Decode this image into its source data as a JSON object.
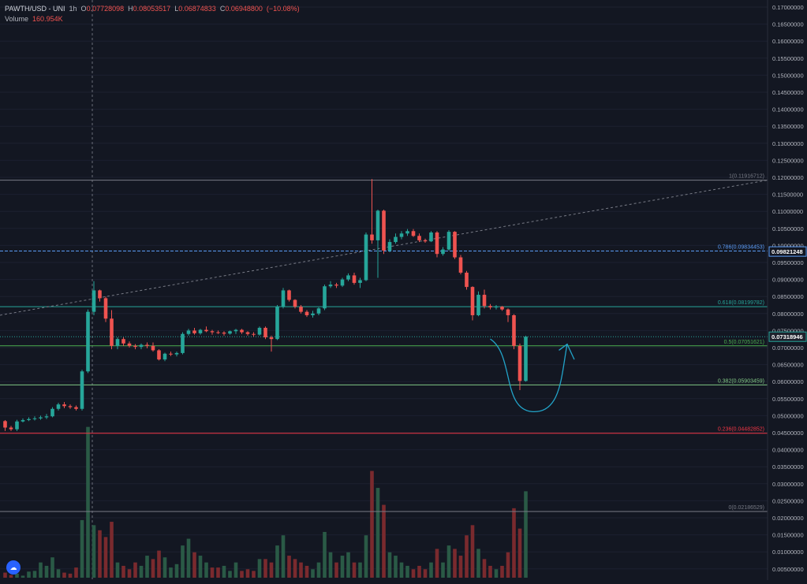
{
  "header": {
    "symbol": "PAWTH/USD - UNI",
    "interval": "1h",
    "o_label": "O",
    "o_value": "0.07728098",
    "h_label": "H",
    "h_value": "0.08053517",
    "l_label": "L",
    "l_value": "0.06874833",
    "c_label": "C",
    "c_value": "0.06948800",
    "change": "(−10.08%)",
    "volume_label": "Volume",
    "volume_value": "160.954K"
  },
  "colors": {
    "background": "#131722",
    "up": "#26a69a",
    "down": "#ef5350",
    "vol_up": "#2a5a46",
    "vol_down": "#7a2a2e",
    "fib_1": "#787b86",
    "fib_786": "#5b9cf6",
    "fib_618": "#26a69a",
    "fib_5": "#4caf50",
    "fib_382": "#81c784",
    "fib_236": "#f23645",
    "fib_0": "#787b86",
    "price_tag": "#131722",
    "drawing": "#22a3c8"
  },
  "chart_data": {
    "type": "candlestick",
    "ylim": [
      0.0,
      0.172
    ],
    "y_ticks": [
      "0.17000000",
      "0.16500000",
      "0.16000000",
      "0.15500000",
      "0.15000000",
      "0.14500000",
      "0.14000000",
      "0.13500000",
      "0.13000000",
      "0.12500000",
      "0.12000000",
      "0.11500000",
      "0.11000000",
      "0.10500000",
      "0.10000000",
      "0.09500000",
      "0.09000000",
      "0.08500000",
      "0.08000000",
      "0.07500000",
      "0.07000000",
      "0.06500000",
      "0.06000000",
      "0.05500000",
      "0.05000000",
      "0.04500000",
      "0.04000000",
      "0.03500000",
      "0.03000000",
      "0.02500000",
      "0.02000000",
      "0.01500000",
      "0.01000000",
      "0.00500000"
    ],
    "fib_levels": [
      {
        "label": "1(0.11916712)",
        "value": 0.11916712,
        "color_key": "fib_1"
      },
      {
        "label": "0.786(0.09834453)",
        "value": 0.09834453,
        "color_key": "fib_786"
      },
      {
        "label": "0.618(0.08199782)",
        "value": 0.08199782,
        "color_key": "fib_618"
      },
      {
        "label": "0.5(0.07051621)",
        "value": 0.07051621,
        "color_key": "fib_5"
      },
      {
        "label": "0.382(0.05903459)",
        "value": 0.05903459,
        "color_key": "fib_382"
      },
      {
        "label": "0.236(0.04482852)",
        "value": 0.04482852,
        "color_key": "fib_236"
      },
      {
        "label": "0(0.02186529)",
        "value": 0.02186529,
        "color_key": "fib_0"
      }
    ],
    "price_tags": [
      {
        "label": "0.09821248",
        "value": 0.09821248
      },
      {
        "label": "0.07318946",
        "value": 0.07318946
      }
    ],
    "candles": [
      [
        0.0484,
        0.0487,
        0.0455,
        0.0465
      ],
      [
        0.0465,
        0.047,
        0.0455,
        0.046
      ],
      [
        0.046,
        0.0488,
        0.0455,
        0.0483
      ],
      [
        0.0483,
        0.0492,
        0.048,
        0.0487
      ],
      [
        0.0487,
        0.0495,
        0.0484,
        0.049
      ],
      [
        0.049,
        0.0498,
        0.0486,
        0.0492
      ],
      [
        0.0492,
        0.05,
        0.0488,
        0.0495
      ],
      [
        0.0495,
        0.0505,
        0.049,
        0.0498
      ],
      [
        0.0498,
        0.0525,
        0.0495,
        0.052
      ],
      [
        0.052,
        0.0538,
        0.0515,
        0.0533
      ],
      [
        0.0533,
        0.054,
        0.0522,
        0.0528
      ],
      [
        0.0528,
        0.0533,
        0.052,
        0.0525
      ],
      [
        0.0525,
        0.053,
        0.0515,
        0.052
      ],
      [
        0.052,
        0.0635,
        0.0515,
        0.063
      ],
      [
        0.063,
        0.0812,
        0.0625,
        0.0805
      ],
      [
        0.0805,
        0.0895,
        0.0795,
        0.0868
      ],
      [
        0.0868,
        0.087,
        0.0835,
        0.0845
      ],
      [
        0.0845,
        0.085,
        0.0775,
        0.0785
      ],
      [
        0.0785,
        0.081,
        0.0695,
        0.0705
      ],
      [
        0.0705,
        0.073,
        0.0695,
        0.0725
      ],
      [
        0.0725,
        0.073,
        0.0705,
        0.0712
      ],
      [
        0.0712,
        0.0718,
        0.07,
        0.0705
      ],
      [
        0.0705,
        0.071,
        0.0695,
        0.0702
      ],
      [
        0.0702,
        0.0712,
        0.0695,
        0.0708
      ],
      [
        0.0708,
        0.0715,
        0.0698,
        0.0705
      ],
      [
        0.0705,
        0.0715,
        0.0688,
        0.0692
      ],
      [
        0.0692,
        0.0695,
        0.0662,
        0.0665
      ],
      [
        0.0665,
        0.0685,
        0.066,
        0.0682
      ],
      [
        0.0682,
        0.0688,
        0.0675,
        0.068
      ],
      [
        0.068,
        0.0688,
        0.0674,
        0.0684
      ],
      [
        0.0684,
        0.0745,
        0.068,
        0.074
      ],
      [
        0.074,
        0.0755,
        0.0735,
        0.075
      ],
      [
        0.075,
        0.0758,
        0.0738,
        0.0742
      ],
      [
        0.0742,
        0.0755,
        0.0738,
        0.0752
      ],
      [
        0.0752,
        0.0762,
        0.0745,
        0.0748
      ],
      [
        0.0748,
        0.0752,
        0.0738,
        0.0745
      ],
      [
        0.0745,
        0.075,
        0.074,
        0.0744
      ],
      [
        0.0744,
        0.0748,
        0.0735,
        0.0741
      ],
      [
        0.0741,
        0.075,
        0.0738,
        0.0748
      ],
      [
        0.0748,
        0.0755,
        0.074,
        0.0752
      ],
      [
        0.0752,
        0.0755,
        0.074,
        0.0745
      ],
      [
        0.0745,
        0.0748,
        0.0735,
        0.074
      ],
      [
        0.074,
        0.0745,
        0.0732,
        0.0738
      ],
      [
        0.0738,
        0.0762,
        0.0735,
        0.0758
      ],
      [
        0.0758,
        0.0762,
        0.0725,
        0.073
      ],
      [
        0.073,
        0.0735,
        0.0688,
        0.0725
      ],
      [
        0.0725,
        0.0825,
        0.0722,
        0.082
      ],
      [
        0.082,
        0.0875,
        0.0815,
        0.0868
      ],
      [
        0.0868,
        0.087,
        0.0835,
        0.084
      ],
      [
        0.084,
        0.0842,
        0.0815,
        0.082
      ],
      [
        0.082,
        0.0825,
        0.08,
        0.0805
      ],
      [
        0.0805,
        0.081,
        0.079,
        0.0795
      ],
      [
        0.0795,
        0.0808,
        0.0788,
        0.08
      ],
      [
        0.08,
        0.0818,
        0.0795,
        0.0815
      ],
      [
        0.0815,
        0.0885,
        0.081,
        0.088
      ],
      [
        0.088,
        0.0895,
        0.0875,
        0.0885
      ],
      [
        0.0885,
        0.089,
        0.0875,
        0.0882
      ],
      [
        0.0882,
        0.0905,
        0.0878,
        0.09
      ],
      [
        0.09,
        0.0918,
        0.0895,
        0.0912
      ],
      [
        0.0912,
        0.092,
        0.0885,
        0.089
      ],
      [
        0.089,
        0.0905,
        0.0875,
        0.0898
      ],
      [
        0.0898,
        0.1038,
        0.0895,
        0.1032
      ],
      [
        0.1032,
        0.1195,
        0.1005,
        0.1015
      ],
      [
        0.1015,
        0.1105,
        0.0905,
        0.1102
      ],
      [
        0.1102,
        0.1105,
        0.0975,
        0.0985
      ],
      [
        0.0985,
        0.1018,
        0.098,
        0.101
      ],
      [
        0.101,
        0.1035,
        0.1005,
        0.1025
      ],
      [
        0.1025,
        0.1042,
        0.1018,
        0.1035
      ],
      [
        0.1035,
        0.1048,
        0.1028,
        0.1042
      ],
      [
        0.1042,
        0.1048,
        0.1025,
        0.1028
      ],
      [
        0.1028,
        0.1035,
        0.101,
        0.1015
      ],
      [
        0.1015,
        0.102,
        0.1008,
        0.1012
      ],
      [
        0.1012,
        0.1042,
        0.101,
        0.1038
      ],
      [
        0.1038,
        0.1042,
        0.0965,
        0.0975
      ],
      [
        0.0975,
        0.0995,
        0.097,
        0.0988
      ],
      [
        0.0988,
        0.1045,
        0.0985,
        0.104
      ],
      [
        0.104,
        0.1042,
        0.096,
        0.0965
      ],
      [
        0.0965,
        0.0972,
        0.0915,
        0.092
      ],
      [
        0.092,
        0.0925,
        0.087,
        0.0878
      ],
      [
        0.0878,
        0.088,
        0.078,
        0.0795
      ],
      [
        0.0795,
        0.0865,
        0.0792,
        0.0855
      ],
      [
        0.0855,
        0.087,
        0.0815,
        0.0822
      ],
      [
        0.0822,
        0.0828,
        0.0812,
        0.0818
      ],
      [
        0.0818,
        0.0825,
        0.0812,
        0.082
      ],
      [
        0.082,
        0.0822,
        0.0808,
        0.0812
      ],
      [
        0.0812,
        0.0815,
        0.0775,
        0.0795
      ],
      [
        0.0795,
        0.0798,
        0.0695,
        0.0705
      ],
      [
        0.0705,
        0.0712,
        0.0575,
        0.0602
      ],
      [
        0.0602,
        0.0735,
        0.06,
        0.0732
      ]
    ],
    "volumes": [
      [
        0.0015,
        0
      ],
      [
        0.0008,
        0
      ],
      [
        0.0012,
        1
      ],
      [
        0.0006,
        1
      ],
      [
        0.0018,
        1
      ],
      [
        0.002,
        1
      ],
      [
        0.0045,
        1
      ],
      [
        0.0035,
        1
      ],
      [
        0.006,
        1
      ],
      [
        0.0025,
        1
      ],
      [
        0.0015,
        0
      ],
      [
        0.0012,
        0
      ],
      [
        0.003,
        0
      ],
      [
        0.017,
        1
      ],
      [
        0.0445,
        1
      ],
      [
        0.0155,
        1
      ],
      [
        0.014,
        0
      ],
      [
        0.012,
        0
      ],
      [
        0.0165,
        0
      ],
      [
        0.0045,
        1
      ],
      [
        0.0035,
        0
      ],
      [
        0.0025,
        0
      ],
      [
        0.0045,
        0
      ],
      [
        0.0035,
        1
      ],
      [
        0.0065,
        1
      ],
      [
        0.0055,
        0
      ],
      [
        0.008,
        0
      ],
      [
        0.006,
        1
      ],
      [
        0.003,
        1
      ],
      [
        0.004,
        1
      ],
      [
        0.0095,
        1
      ],
      [
        0.0115,
        1
      ],
      [
        0.0075,
        0
      ],
      [
        0.0065,
        1
      ],
      [
        0.0045,
        1
      ],
      [
        0.003,
        0
      ],
      [
        0.003,
        0
      ],
      [
        0.0035,
        1
      ],
      [
        0.002,
        1
      ],
      [
        0.0045,
        1
      ],
      [
        0.002,
        0
      ],
      [
        0.0025,
        0
      ],
      [
        0.002,
        0
      ],
      [
        0.0055,
        1
      ],
      [
        0.0055,
        0
      ],
      [
        0.0045,
        0
      ],
      [
        0.0095,
        1
      ],
      [
        0.0125,
        1
      ],
      [
        0.0065,
        0
      ],
      [
        0.0055,
        0
      ],
      [
        0.0045,
        0
      ],
      [
        0.0035,
        0
      ],
      [
        0.0025,
        1
      ],
      [
        0.0045,
        1
      ],
      [
        0.0135,
        1
      ],
      [
        0.0075,
        1
      ],
      [
        0.0045,
        0
      ],
      [
        0.0065,
        1
      ],
      [
        0.0075,
        1
      ],
      [
        0.0045,
        0
      ],
      [
        0.0045,
        1
      ],
      [
        0.0125,
        1
      ],
      [
        0.0315,
        0
      ],
      [
        0.0265,
        1
      ],
      [
        0.0215,
        0
      ],
      [
        0.0075,
        1
      ],
      [
        0.0065,
        1
      ],
      [
        0.0045,
        1
      ],
      [
        0.0035,
        1
      ],
      [
        0.0025,
        0
      ],
      [
        0.0035,
        0
      ],
      [
        0.0025,
        0
      ],
      [
        0.0045,
        1
      ],
      [
        0.0085,
        0
      ],
      [
        0.0045,
        1
      ],
      [
        0.0095,
        1
      ],
      [
        0.0085,
        0
      ],
      [
        0.0065,
        0
      ],
      [
        0.0125,
        0
      ],
      [
        0.0155,
        0
      ],
      [
        0.0085,
        1
      ],
      [
        0.0055,
        0
      ],
      [
        0.0035,
        0
      ],
      [
        0.0025,
        1
      ],
      [
        0.0035,
        0
      ],
      [
        0.0075,
        0
      ],
      [
        0.0205,
        0
      ],
      [
        0.0145,
        0
      ],
      [
        0.0255,
        1
      ]
    ]
  }
}
